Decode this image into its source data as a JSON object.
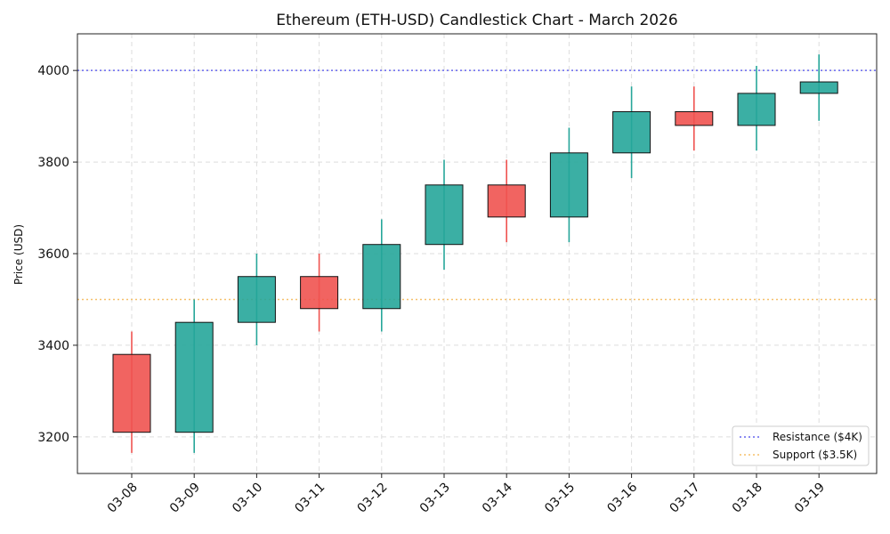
{
  "chart_data": {
    "type": "candlestick",
    "title": "Ethereum (ETH-USD) Candlestick Chart - March 2026",
    "xlabel": "",
    "ylabel": "Price (USD)",
    "ylim": [
      3120,
      4080
    ],
    "yticks": [
      3200,
      3400,
      3600,
      3800,
      4000
    ],
    "grid": true,
    "colors": {
      "up": "#26a69a",
      "down": "#ef5350",
      "resistance": "#6666ee",
      "support": "#f5c06a"
    },
    "categories": [
      "03-08",
      "03-09",
      "03-10",
      "03-11",
      "03-12",
      "03-13",
      "03-14",
      "03-15",
      "03-16",
      "03-17",
      "03-18",
      "03-19"
    ],
    "candles": [
      {
        "date": "03-08",
        "open": 3380,
        "high": 3430,
        "low": 3165,
        "close": 3210
      },
      {
        "date": "03-09",
        "open": 3210,
        "high": 3500,
        "low": 3165,
        "close": 3450
      },
      {
        "date": "03-10",
        "open": 3450,
        "high": 3600,
        "low": 3400,
        "close": 3550
      },
      {
        "date": "03-11",
        "open": 3550,
        "high": 3600,
        "low": 3430,
        "close": 3480
      },
      {
        "date": "03-12",
        "open": 3480,
        "high": 3675,
        "low": 3430,
        "close": 3620
      },
      {
        "date": "03-13",
        "open": 3620,
        "high": 3805,
        "low": 3565,
        "close": 3750
      },
      {
        "date": "03-14",
        "open": 3750,
        "high": 3805,
        "low": 3625,
        "close": 3680
      },
      {
        "date": "03-15",
        "open": 3680,
        "high": 3875,
        "low": 3625,
        "close": 3820
      },
      {
        "date": "03-16",
        "open": 3820,
        "high": 3965,
        "low": 3765,
        "close": 3910
      },
      {
        "date": "03-17",
        "open": 3910,
        "high": 3965,
        "low": 3825,
        "close": 3880
      },
      {
        "date": "03-18",
        "open": 3880,
        "high": 4010,
        "low": 3825,
        "close": 3950
      },
      {
        "date": "03-19",
        "open": 3950,
        "high": 4035,
        "low": 3890,
        "close": 3975
      }
    ],
    "reference_lines": [
      {
        "name": "Resistance ($4K)",
        "value": 4000,
        "style": "dotted"
      },
      {
        "name": "Support ($3.5K)",
        "value": 3500,
        "style": "dotted"
      }
    ],
    "legend": {
      "position": "bottom-right",
      "entries": [
        "Resistance ($4K)",
        "Support ($3.5K)"
      ]
    }
  }
}
